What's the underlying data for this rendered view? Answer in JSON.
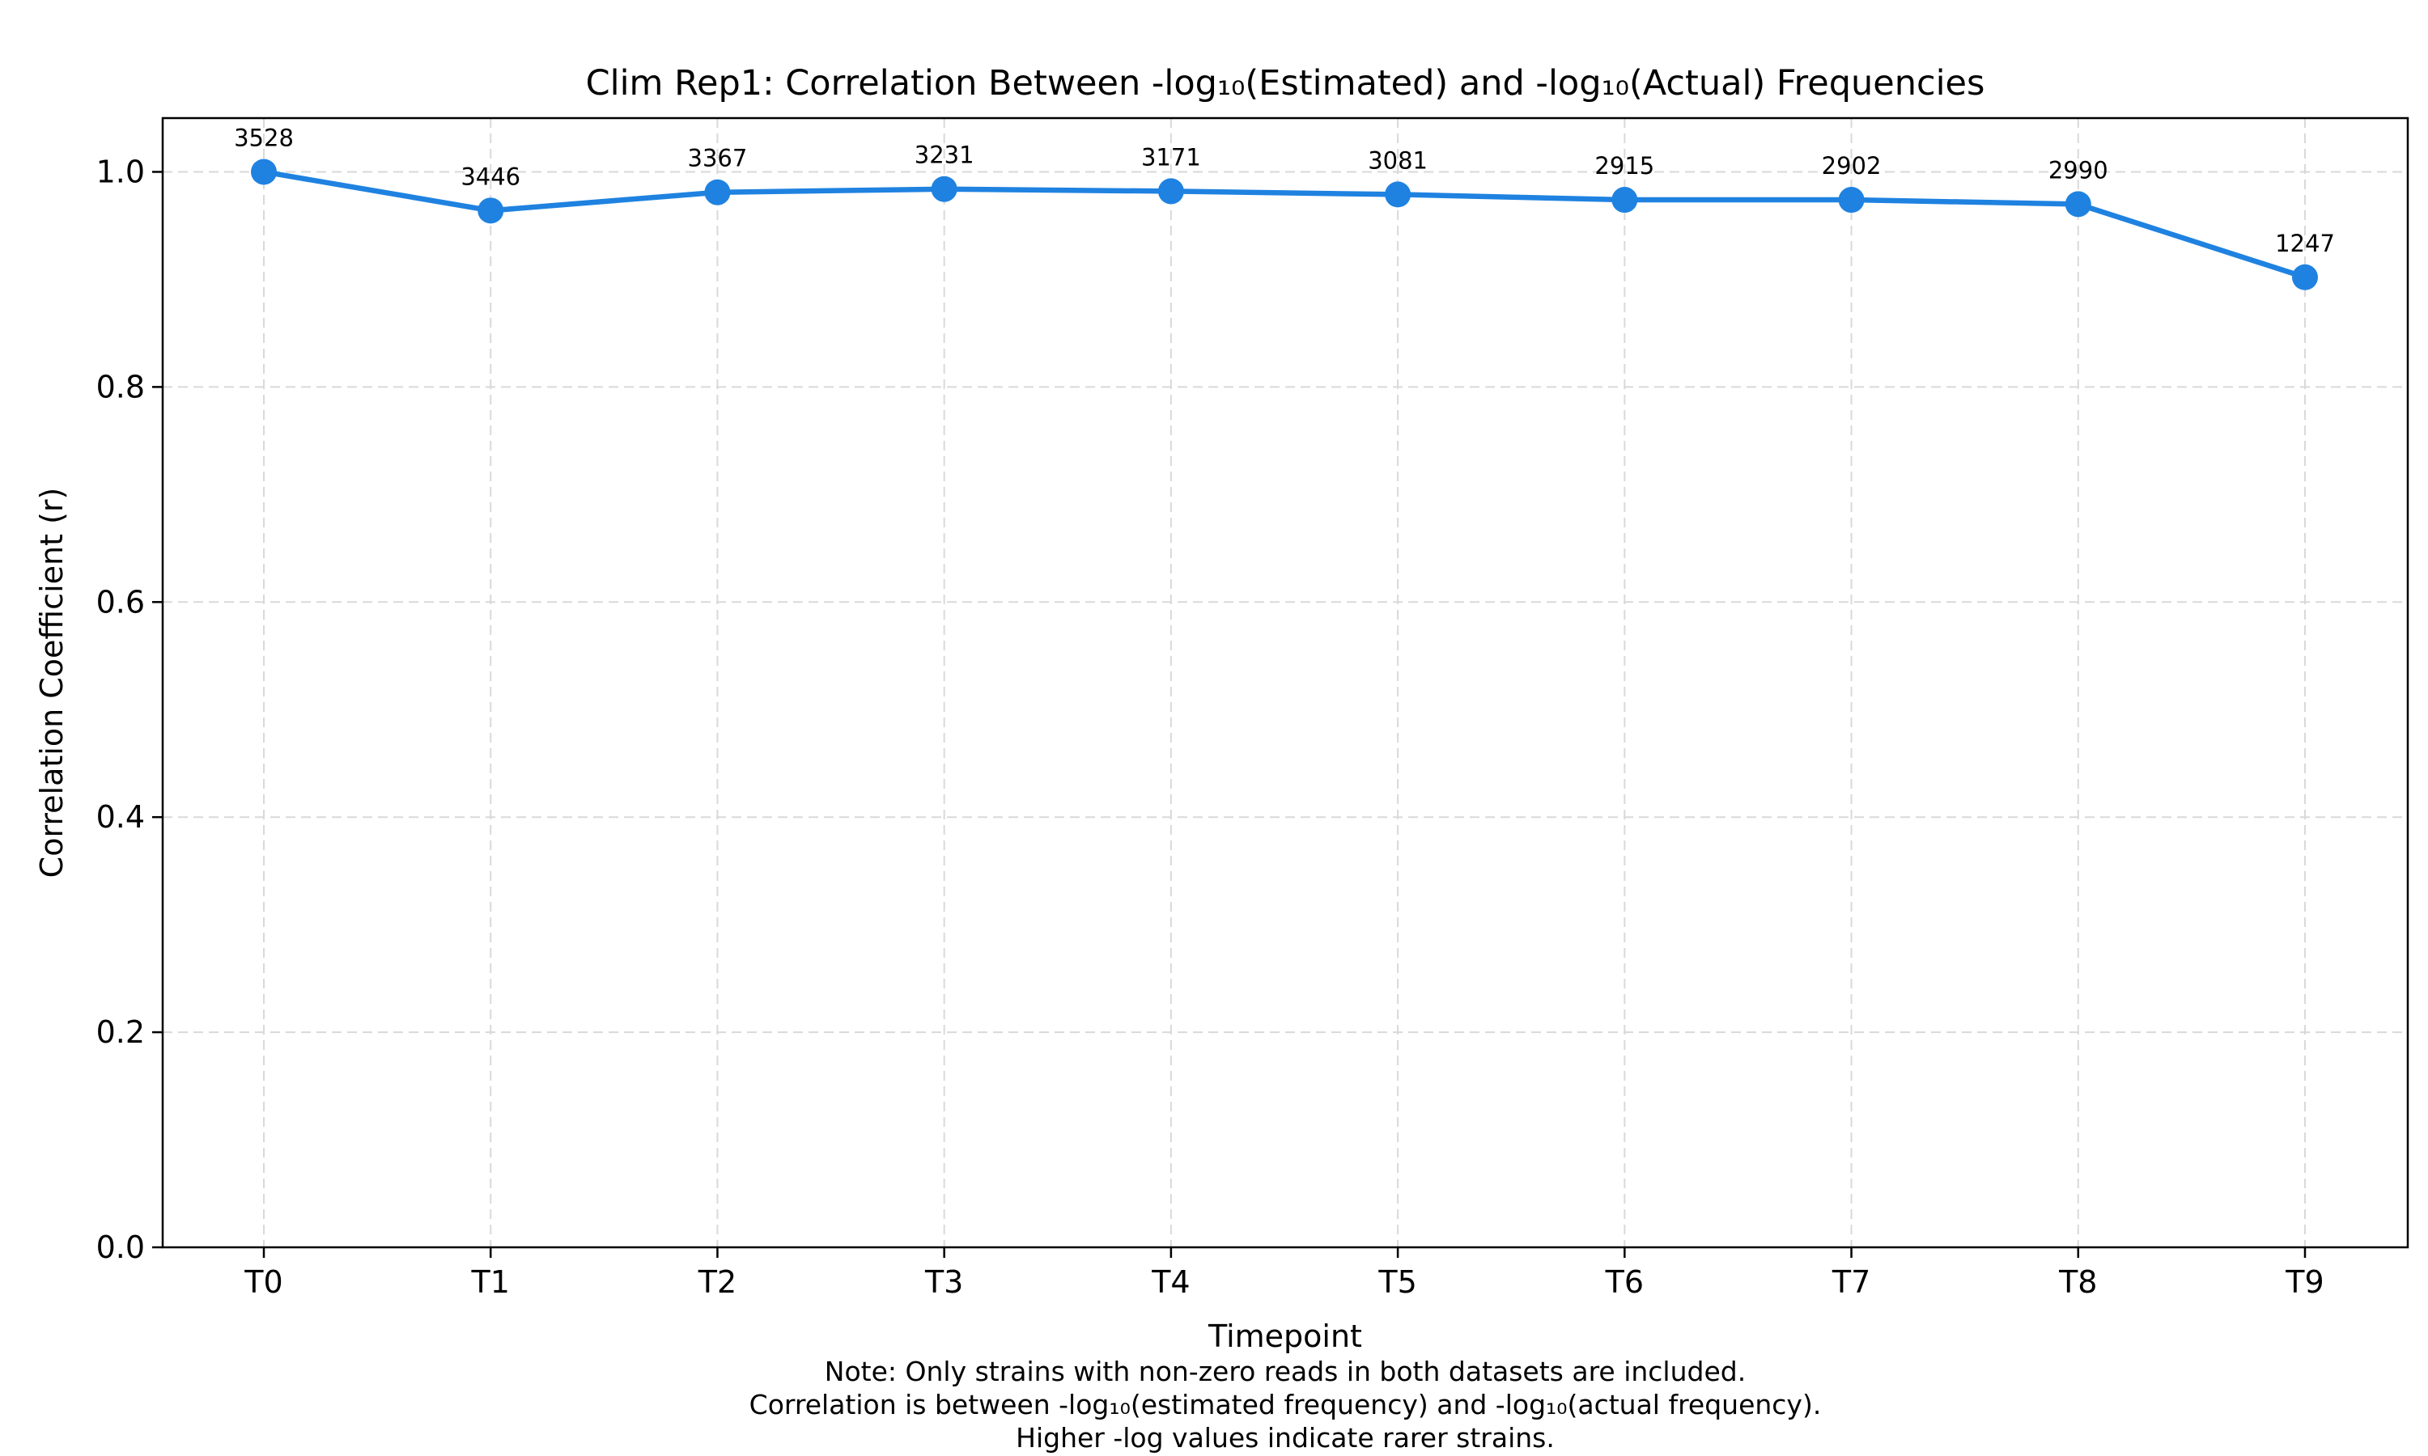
{
  "chart_data": {
    "type": "line",
    "title": "Clim Rep1: Correlation Between -log₁₀(Estimated) and -log₁₀(Actual) Frequencies",
    "xlabel": "Timepoint",
    "ylabel": "Correlation Coefficient (r)",
    "categories": [
      "T0",
      "T1",
      "T2",
      "T3",
      "T4",
      "T5",
      "T6",
      "T7",
      "T8",
      "T9"
    ],
    "series": [
      {
        "values": [
          1.0,
          0.964,
          0.981,
          0.984,
          0.982,
          0.979,
          0.974,
          0.974,
          0.97,
          0.902
        ],
        "point_labels": [
          "3528",
          "3446",
          "3367",
          "3231",
          "3171",
          "3081",
          "2915",
          "2902",
          "2990",
          "1247"
        ],
        "color": "#1f82e0"
      }
    ],
    "ylim": [
      0.0,
      1.05
    ],
    "yticks": [
      0.0,
      0.2,
      0.4,
      0.6,
      0.8,
      1.0
    ],
    "ytick_labels": [
      "0.0",
      "0.2",
      "0.4",
      "0.6",
      "0.8",
      "1.0"
    ],
    "grid": true,
    "notes": [
      "Note: Only strains with non-zero reads in both datasets are included.",
      "Correlation is between -log₁₀(estimated frequency) and -log₁₀(actual frequency).",
      "Higher -log values indicate rarer strains."
    ]
  }
}
